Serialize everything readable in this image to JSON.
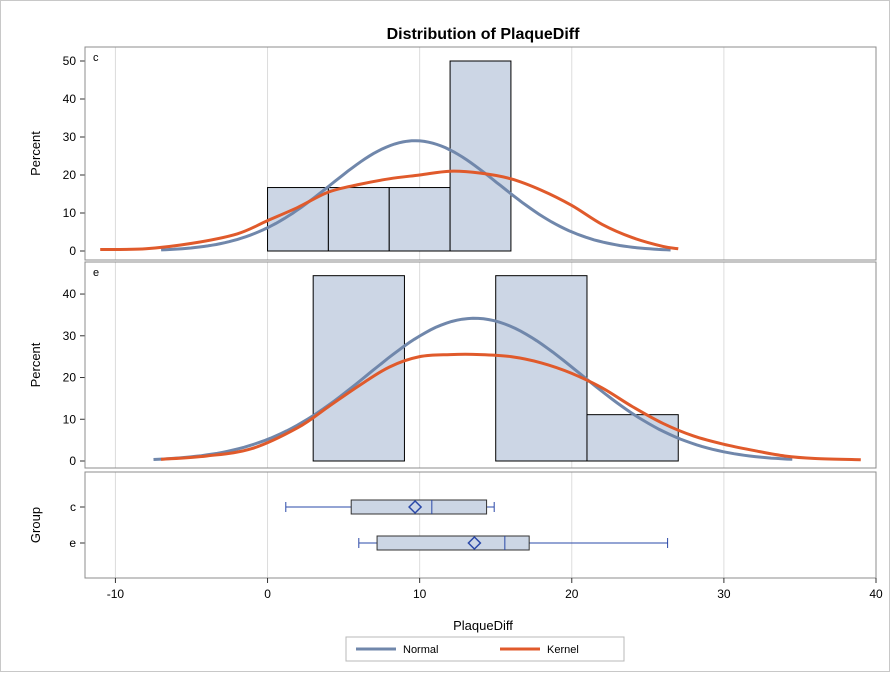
{
  "chart_data": {
    "title": "Distribution of PlaqueDiff",
    "xlabel": "PlaqueDiff",
    "xlim": [
      -12,
      40
    ],
    "xticks": [
      -10,
      0,
      10,
      20,
      30,
      40
    ],
    "grid": true,
    "legend_placement": "bottom-center",
    "colors": {
      "normal": "#7087ab",
      "kernel": "#e05a2b",
      "bar_fill": "#ccd6e5",
      "box_line": "#2a48a8",
      "grid": "#dcdcdc"
    },
    "legend": [
      {
        "name": "Normal",
        "color": "#7087ab"
      },
      {
        "name": "Kernel",
        "color": "#e05a2b"
      }
    ],
    "panels": [
      {
        "type": "histogram",
        "group_label": "c",
        "ylabel": "Percent",
        "ylim": [
          0,
          50
        ],
        "yticks": [
          0,
          10,
          20,
          30,
          40,
          50
        ],
        "bins": [
          {
            "x0": 0,
            "x1": 4,
            "value": 16.7
          },
          {
            "x0": 4,
            "x1": 8,
            "value": 16.7
          },
          {
            "x0": 8,
            "x1": 12,
            "value": 16.7
          },
          {
            "x0": 12,
            "x1": 16,
            "value": 50
          }
        ],
        "normal": {
          "mean": 9.7,
          "sd": 5.5,
          "x_range": [
            -7,
            26.5
          ]
        },
        "kernel": {
          "points": [
            [
              -11,
              0.4
            ],
            [
              -8,
              0.6
            ],
            [
              -5,
              2
            ],
            [
              -2,
              4.5
            ],
            [
              0,
              8
            ],
            [
              2,
              11.5
            ],
            [
              4,
              15.5
            ],
            [
              6,
              17.5
            ],
            [
              8,
              19
            ],
            [
              10,
              20
            ],
            [
              12,
              21
            ],
            [
              14,
              20.5
            ],
            [
              16,
              19
            ],
            [
              18,
              16
            ],
            [
              20,
              12
            ],
            [
              22,
              7
            ],
            [
              24,
              3.5
            ],
            [
              26,
              1.2
            ],
            [
              27,
              0.6
            ]
          ]
        }
      },
      {
        "type": "histogram",
        "group_label": "e",
        "ylabel": "Percent",
        "ylim": [
          0,
          46
        ],
        "yticks": [
          0,
          10,
          20,
          30,
          40
        ],
        "bins": [
          {
            "x0": 3,
            "x1": 9,
            "value": 44.4
          },
          {
            "x0": 15,
            "x1": 21,
            "value": 44.4
          },
          {
            "x0": 21,
            "x1": 27,
            "value": 11.1
          }
        ],
        "normal": {
          "mean": 13.6,
          "sd": 7.0,
          "x_range": [
            -7.5,
            34.5
          ]
        },
        "kernel": {
          "points": [
            [
              -7,
              0.4
            ],
            [
              -4,
              1.2
            ],
            [
              -1,
              3
            ],
            [
              2,
              8
            ],
            [
              4,
              13
            ],
            [
              6,
              18
            ],
            [
              8,
              22.5
            ],
            [
              10,
              25
            ],
            [
              12,
              25.5
            ],
            [
              14,
              25.5
            ],
            [
              16,
              25
            ],
            [
              18,
              23.5
            ],
            [
              20,
              21
            ],
            [
              22,
              17.5
            ],
            [
              24,
              13
            ],
            [
              26,
              9
            ],
            [
              28,
              6
            ],
            [
              30,
              4
            ],
            [
              32,
              2.5
            ],
            [
              34,
              1.2
            ],
            [
              36,
              0.6
            ],
            [
              39,
              0.3
            ]
          ]
        }
      },
      {
        "type": "boxplot",
        "ylabel": "Group",
        "groups": [
          {
            "label": "c",
            "min": 1.2,
            "q1": 5.5,
            "median": 10.8,
            "q3": 14.4,
            "max": 14.9,
            "mean": 9.7
          },
          {
            "label": "e",
            "min": 6,
            "q1": 7.2,
            "median": 15.6,
            "q3": 17.2,
            "max": 26.3,
            "mean": 13.6
          }
        ]
      }
    ]
  }
}
